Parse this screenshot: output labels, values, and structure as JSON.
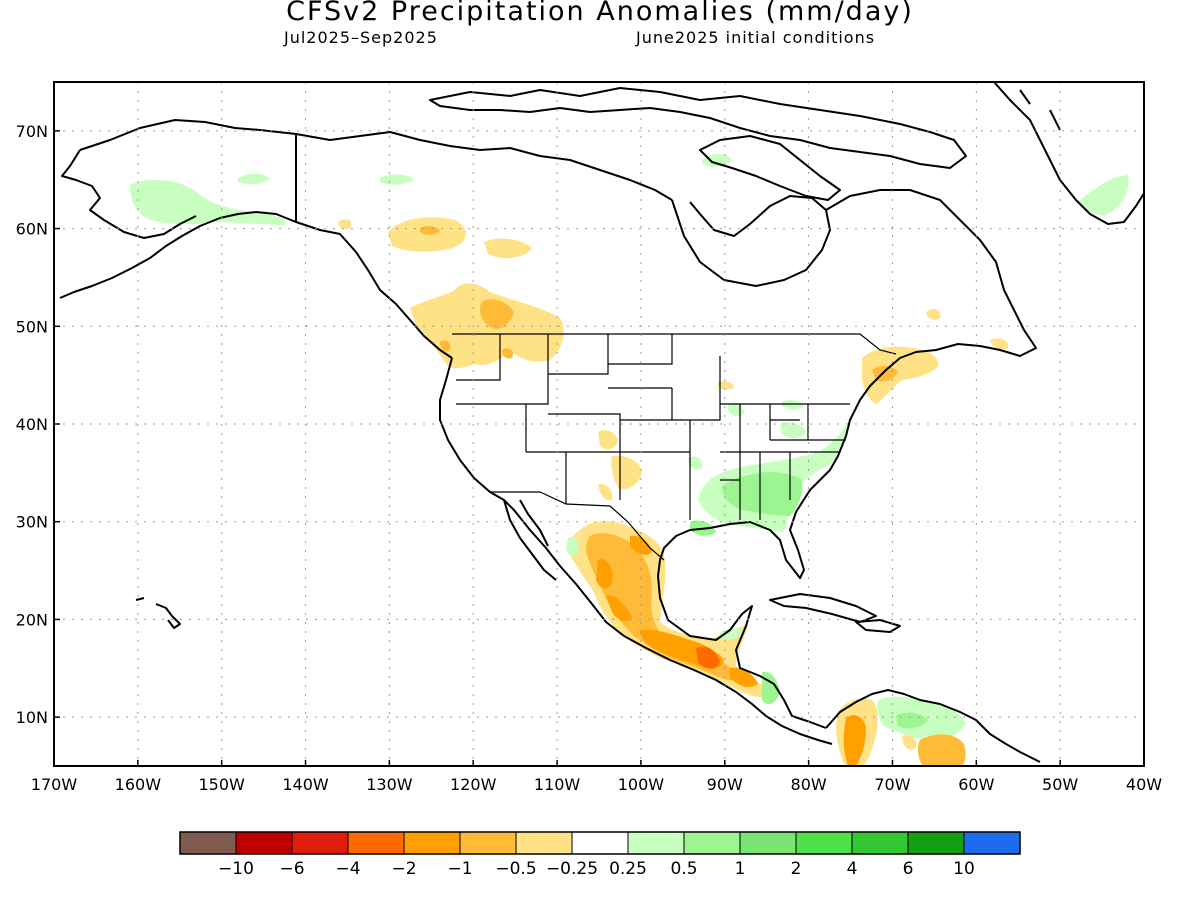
{
  "title": "CFSv2 Precipitation Anomalies (mm/day)",
  "period": "Jul2025–Sep2025",
  "init": "June2025 initial conditions",
  "map": {
    "lon_range": [
      -170,
      -40
    ],
    "lat_range": [
      5,
      75
    ],
    "lon_ticks": [
      -170,
      -160,
      -150,
      -140,
      -130,
      -120,
      -110,
      -100,
      -90,
      -80,
      -70,
      -60,
      -50,
      -40
    ],
    "lat_ticks": [
      10,
      20,
      30,
      40,
      50,
      60,
      70
    ],
    "lon_tick_labels": [
      "170W",
      "160W",
      "150W",
      "140W",
      "130W",
      "120W",
      "110W",
      "100W",
      "90W",
      "80W",
      "70W",
      "60W",
      "50W",
      "40W"
    ],
    "lat_tick_labels": [
      "10N",
      "20N",
      "30N",
      "40N",
      "50N",
      "60N",
      "70N"
    ],
    "gridlines": "dotted"
  },
  "colorbar": {
    "colors": [
      "#7f5a4e",
      "#c00000",
      "#e01c0c",
      "#ff6a00",
      "#ff9f00",
      "#ffba38",
      "#ffe285",
      "#ffffff",
      "#c8ffc0",
      "#9cf590",
      "#7ae472",
      "#4fe04a",
      "#34c734",
      "#12a012",
      "#1d6cf0"
    ],
    "labels": [
      "−10",
      "−6",
      "−4",
      "−2",
      "−1",
      "−0.5",
      "−0.25",
      "0.25",
      "0.5",
      "1",
      "2",
      "4",
      "6",
      "10"
    ]
  },
  "anomaly_colors": {
    "dry_weak": "#ffe285",
    "dry_moderate": "#ffba38",
    "dry_strong": "#ff9f00",
    "dry_very_strong": "#ff6a00",
    "wet_weak": "#c8ffc0",
    "wet_moderate": "#9cf590",
    "wet_strong": "#7ae472"
  }
}
